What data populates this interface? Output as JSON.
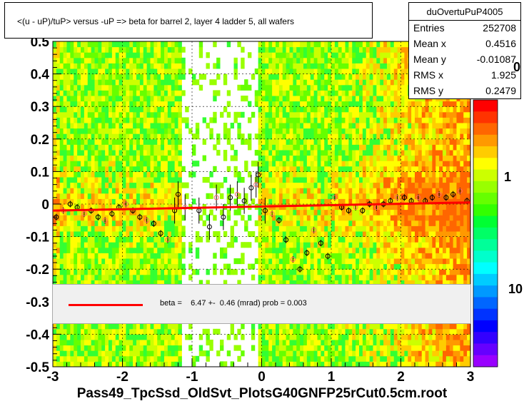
{
  "title": "<(u - uP)/tuP> versus  -uP => beta for barrel 2, layer 4 ladder 5, all wafers",
  "stats": {
    "name": "duOvertuPuP4005",
    "rows": [
      {
        "label": "Entries",
        "value": "252708"
      },
      {
        "label": "Mean x",
        "value": "0.4516"
      },
      {
        "label": "Mean y",
        "value": "-0.01087"
      },
      {
        "label": "RMS x",
        "value": "1.925"
      },
      {
        "label": "RMS y",
        "value": "0.2479"
      }
    ]
  },
  "legend": {
    "text": "beta =    6.47 +-  0.46 (mrad) prob = 0.003",
    "line_color": "#ff0000"
  },
  "x_title": "Pass49_TpcSsd_OldSvt_PlotsG40GNFP25rCut0.5cm.root",
  "z_labels": [
    "0",
    "1",
    "10"
  ],
  "chart_data": {
    "type": "heatmap",
    "xlim": [
      -3,
      3
    ],
    "ylim": [
      -0.5,
      0.5
    ],
    "x_ticks": [
      "-3",
      "-2",
      "-1",
      "0",
      "1",
      "2",
      "3"
    ],
    "y_ticks": [
      "-0.5",
      "-0.4",
      "-0.3",
      "-0.2",
      "-0.1",
      "0",
      "0.1",
      "0.2",
      "0.3",
      "0.4",
      "0.5"
    ],
    "grid": true,
    "z_scale": "log",
    "fit_line": {
      "x": [
        -3,
        3
      ],
      "y": [
        -0.02,
        0.005
      ]
    },
    "profile_points": [
      {
        "x": -2.95,
        "y": -0.04
      },
      {
        "x": -2.85,
        "y": -0.02
      },
      {
        "x": -2.75,
        "y": 0.0
      },
      {
        "x": -2.65,
        "y": -0.01
      },
      {
        "x": -2.55,
        "y": -0.03
      },
      {
        "x": -2.45,
        "y": -0.02
      },
      {
        "x": -2.35,
        "y": -0.04
      },
      {
        "x": -2.25,
        "y": -0.05
      },
      {
        "x": -2.15,
        "y": -0.03
      },
      {
        "x": -2.05,
        "y": -0.01
      },
      {
        "x": -1.95,
        "y": 0.0
      },
      {
        "x": -1.85,
        "y": -0.02
      },
      {
        "x": -1.75,
        "y": -0.04
      },
      {
        "x": -1.65,
        "y": -0.05
      },
      {
        "x": -1.55,
        "y": -0.06
      },
      {
        "x": -1.45,
        "y": -0.09
      },
      {
        "x": -1.35,
        "y": -0.11
      },
      {
        "x": -1.25,
        "y": -0.02
      },
      {
        "x": -1.2,
        "y": 0.03
      },
      {
        "x": -1.1,
        "y": -0.01
      },
      {
        "x": -0.9,
        "y": -0.02
      },
      {
        "x": -0.75,
        "y": -0.07
      },
      {
        "x": -0.65,
        "y": 0.02
      },
      {
        "x": -0.55,
        "y": -0.04
      },
      {
        "x": -0.45,
        "y": 0.02
      },
      {
        "x": -0.35,
        "y": 0.03
      },
      {
        "x": -0.25,
        "y": 0.01
      },
      {
        "x": -0.15,
        "y": 0.05
      },
      {
        "x": -0.08,
        "y": 0.06
      },
      {
        "x": -0.05,
        "y": 0.09
      },
      {
        "x": 0.05,
        "y": -0.02
      },
      {
        "x": 0.15,
        "y": -0.03
      },
      {
        "x": 0.25,
        "y": -0.05
      },
      {
        "x": 0.35,
        "y": -0.11
      },
      {
        "x": 0.45,
        "y": -0.17
      },
      {
        "x": 0.55,
        "y": -0.2
      },
      {
        "x": 0.65,
        "y": -0.15
      },
      {
        "x": 0.75,
        "y": -0.08
      },
      {
        "x": 0.85,
        "y": -0.12
      },
      {
        "x": 0.95,
        "y": -0.16
      },
      {
        "x": 1.05,
        "y": 0.02
      },
      {
        "x": 1.15,
        "y": -0.01
      },
      {
        "x": 1.25,
        "y": -0.02
      },
      {
        "x": 1.35,
        "y": -0.01
      },
      {
        "x": 1.45,
        "y": -0.02
      },
      {
        "x": 1.55,
        "y": 0.0
      },
      {
        "x": 1.65,
        "y": -0.01
      },
      {
        "x": 1.75,
        "y": 0.0
      },
      {
        "x": 1.85,
        "y": 0.01
      },
      {
        "x": 1.95,
        "y": 0.02
      },
      {
        "x": 2.05,
        "y": 0.02
      },
      {
        "x": 2.15,
        "y": 0.01
      },
      {
        "x": 2.25,
        "y": 0.02
      },
      {
        "x": 2.35,
        "y": 0.01
      },
      {
        "x": 2.45,
        "y": 0.02
      },
      {
        "x": 2.55,
        "y": 0.03
      },
      {
        "x": 2.65,
        "y": 0.02
      },
      {
        "x": 2.75,
        "y": 0.03
      },
      {
        "x": 2.85,
        "y": 0.04
      },
      {
        "x": 2.95,
        "y": 0.01
      }
    ]
  }
}
